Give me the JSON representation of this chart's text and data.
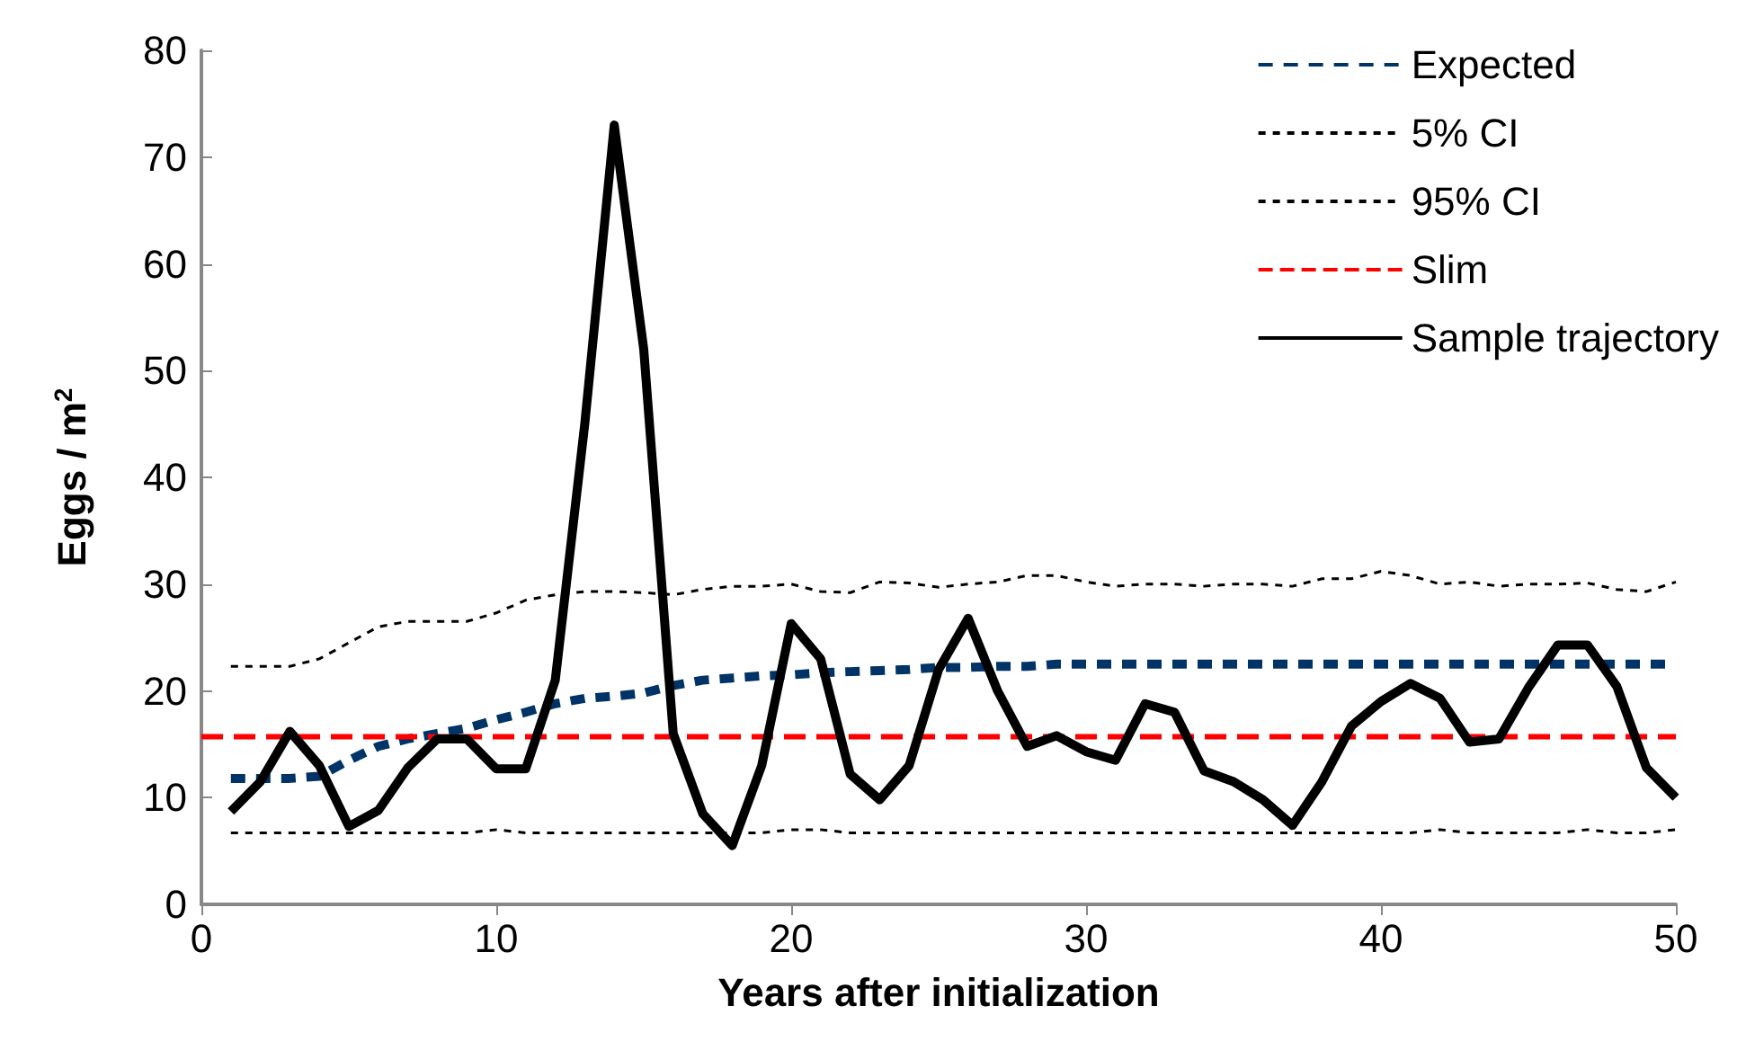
{
  "chart_data": {
    "type": "line",
    "xlabel": "Years after initialization",
    "ylabel": "Eggs / m$^{2}$",
    "x": [
      1,
      2,
      3,
      4,
      5,
      6,
      7,
      8,
      9,
      10,
      11,
      12,
      13,
      14,
      15,
      16,
      17,
      18,
      19,
      20,
      21,
      22,
      23,
      24,
      25,
      26,
      27,
      28,
      29,
      30,
      31,
      32,
      33,
      34,
      35,
      36,
      37,
      38,
      39,
      40,
      41,
      42,
      43,
      44,
      45,
      46,
      47,
      48,
      49,
      50
    ],
    "xlim": [
      0,
      50
    ],
    "xticks": [
      0,
      10,
      20,
      30,
      40,
      50
    ],
    "ylim": [
      0,
      80
    ],
    "yticks": [
      0,
      10,
      20,
      30,
      40,
      50,
      60,
      70,
      80
    ],
    "grid": false,
    "legend": "top right",
    "marker": "none",
    "series": [
      {
        "name": "Expected",
        "color": "#003366",
        "line_style": "dashed",
        "values": [
          11.8,
          11.8,
          11.8,
          12,
          13.5,
          14.8,
          15.5,
          16,
          16.5,
          17.3,
          18,
          18.8,
          19.3,
          19.5,
          19.8,
          20.5,
          21,
          21.2,
          21.4,
          21.5,
          21.7,
          21.8,
          21.9,
          22,
          22.2,
          22.2,
          22.3,
          22.3,
          22.5,
          22.5,
          22.5,
          22.5,
          22.5,
          22.5,
          22.5,
          22.5,
          22.5,
          22.5,
          22.5,
          22.5,
          22.5,
          22.5,
          22.5,
          22.5,
          22.5,
          22.5,
          22.5,
          22.5,
          22.5,
          22.5
        ]
      },
      {
        "name": "5% CI",
        "color": "#000000",
        "line_style": "dotted",
        "values": [
          6.7,
          6.7,
          6.7,
          6.7,
          6.7,
          6.7,
          6.7,
          6.7,
          6.7,
          7,
          6.7,
          6.7,
          6.7,
          6.7,
          6.7,
          6.7,
          6.7,
          6.7,
          6.7,
          7,
          7,
          6.7,
          6.7,
          6.7,
          6.7,
          6.7,
          6.7,
          6.7,
          6.7,
          6.7,
          6.7,
          6.7,
          6.7,
          6.7,
          6.7,
          6.7,
          6.7,
          6.7,
          6.7,
          6.7,
          6.7,
          7,
          6.7,
          6.7,
          6.7,
          6.7,
          7,
          6.7,
          6.7,
          7
        ]
      },
      {
        "name": "95% CI",
        "color": "#000000",
        "line_style": "dotted",
        "values": [
          22.3,
          22.3,
          22.3,
          23,
          24.5,
          26,
          26.5,
          26.5,
          26.5,
          27.3,
          28.5,
          29,
          29.3,
          29.3,
          29.2,
          29,
          29.5,
          29.8,
          29.8,
          30,
          29.3,
          29.2,
          30.2,
          30.1,
          29.7,
          30,
          30.2,
          30.8,
          30.8,
          30.2,
          29.8,
          30,
          30,
          29.8,
          30,
          30,
          29.8,
          30.5,
          30.5,
          31.2,
          30.8,
          30,
          30.2,
          29.8,
          30,
          30,
          30.1,
          29.5,
          29.3,
          30.2
        ]
      },
      {
        "name": "Slim",
        "color": "#ff0000",
        "line_style": "dashed",
        "x": [
          0,
          50
        ],
        "values": [
          15.7,
          15.7
        ]
      },
      {
        "name": "Sample trajectory",
        "color": "#000000",
        "line_style": "solid",
        "values": [
          8.7,
          11.5,
          16.2,
          13,
          7.3,
          8.8,
          12.8,
          15.5,
          15.5,
          12.7,
          12.7,
          21,
          45,
          73,
          52,
          16,
          8.5,
          5.5,
          13,
          26.3,
          23,
          12.2,
          9.8,
          13,
          22,
          26.8,
          20,
          14.8,
          15.8,
          14.3,
          13.5,
          18.8,
          18,
          12.5,
          11.5,
          9.8,
          7.4,
          11.5,
          16.7,
          19,
          20.7,
          19.3,
          15.2,
          15.5,
          20.3,
          24.3,
          24.3,
          20.4,
          12.8,
          10
        ]
      }
    ]
  }
}
